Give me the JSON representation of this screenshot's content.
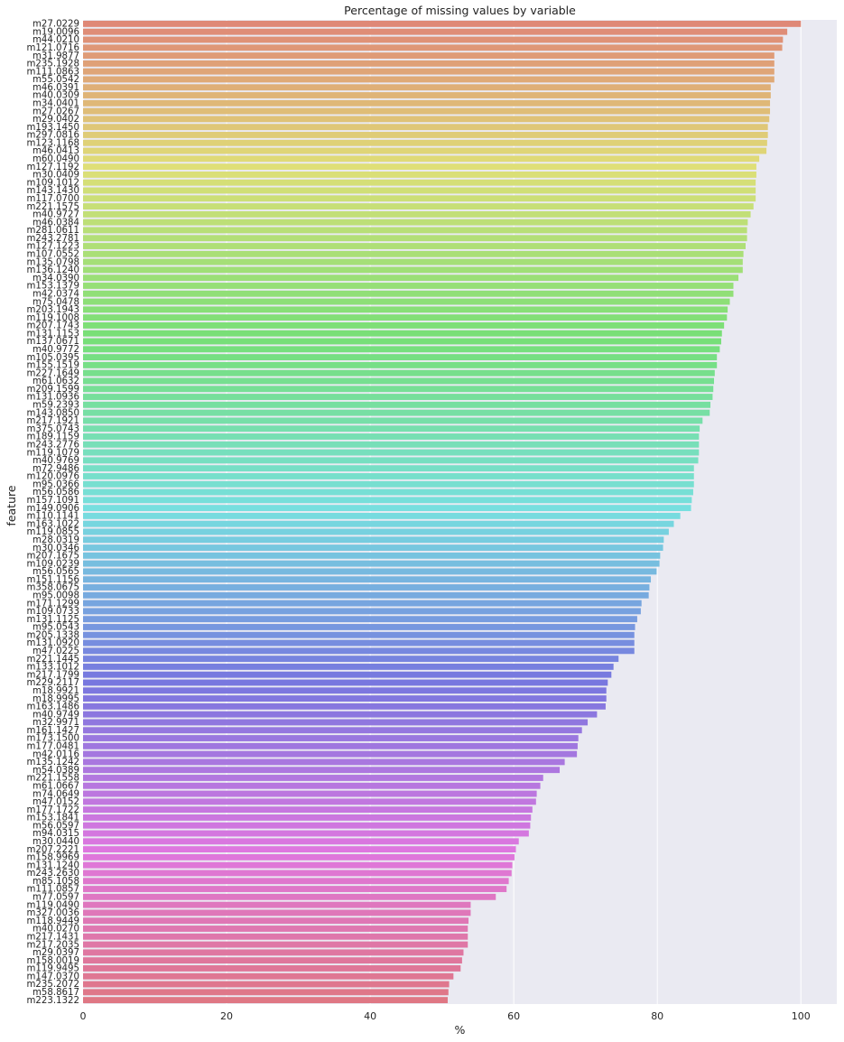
{
  "chart_data": {
    "type": "bar",
    "orientation": "horizontal",
    "title": "Percentage of missing values by variable",
    "xlabel": "%",
    "ylabel": "feature",
    "xlim": [
      0,
      105
    ],
    "xticks": [
      0,
      20,
      40,
      60,
      80,
      100
    ],
    "grid": true,
    "legend": "none",
    "categories": [
      "m27.0229",
      "m19.0096",
      "m44.0210",
      "m121.0716",
      "m31.9877",
      "m235.1928",
      "m111.0863",
      "m55.0542",
      "m46.0391",
      "m40.0309",
      "m34.0401",
      "m27.0267",
      "m29.0402",
      "m193.1450",
      "m297.0816",
      "m123.1168",
      "m46.0413",
      "m60.0490",
      "m127.1192",
      "m30.0409",
      "m109.1012",
      "m143.1430",
      "m117.0700",
      "m221.1575",
      "m40.9727",
      "m46.0384",
      "m281.0611",
      "m243.2781",
      "m127.1223",
      "m107.0552",
      "m135.0798",
      "m136.1240",
      "m34.0390",
      "m153.1379",
      "m42.0374",
      "m75.0478",
      "m203.1943",
      "m119.1008",
      "m207.1743",
      "m131.1153",
      "m137.0671",
      "m40.9772",
      "m105.0395",
      "m155.1519",
      "m227.1649",
      "m61.0632",
      "m209.1599",
      "m131.0936",
      "m59.2393",
      "m143.0850",
      "m217.1921",
      "m375.0743",
      "m189.1159",
      "m243.2776",
      "m119.1079",
      "m40.9769",
      "m72.9486",
      "m120.0976",
      "m95.0366",
      "m56.0586",
      "m157.1091",
      "m149.0906",
      "m110.1141",
      "m163.1022",
      "m119.0855",
      "m28.0319",
      "m30.0346",
      "m207.1675",
      "m109.0239",
      "m56.0565",
      "m151.1156",
      "m358.0675",
      "m95.0098",
      "m171.1299",
      "m109.0733",
      "m131.1125",
      "m95.0543",
      "m205.1338",
      "m131.0920",
      "m47.0225",
      "m221.1445",
      "m133.1012",
      "m217.1799",
      "m229.2117",
      "m18.9921",
      "m18.9995",
      "m163.1486",
      "m40.9749",
      "m32.9971",
      "m161.1427",
      "m173.1500",
      "m177.0481",
      "m42.0116",
      "m135.1242",
      "m54.0389",
      "m221.1558",
      "m61.0667",
      "m74.0649",
      "m47.0152",
      "m177.1722",
      "m153.1841",
      "m56.0597",
      "m94.0315",
      "m30.0440",
      "m207.2221",
      "m158.9969",
      "m131.1240",
      "m243.2630",
      "m85.1058",
      "m111.0857",
      "m77.0597",
      "m119.0490",
      "m327.0036",
      "m118.9449",
      "m40.0270",
      "m217.1431",
      "m217.2035",
      "m29.0397",
      "m158.0019",
      "m119.9495",
      "m147.0370",
      "m235.2072",
      "m58.8617",
      "m223.1322"
    ],
    "values": [
      100,
      98.1,
      97.5,
      97.4,
      96.3,
      96.3,
      96.3,
      96.3,
      95.8,
      95.8,
      95.7,
      95.7,
      95.6,
      95.4,
      95.4,
      95.3,
      95.2,
      94.2,
      93.8,
      93.8,
      93.7,
      93.7,
      93.7,
      93.4,
      93.0,
      92.6,
      92.5,
      92.5,
      92.3,
      92.0,
      91.9,
      91.9,
      91.3,
      90.6,
      90.6,
      90.1,
      89.8,
      89.7,
      89.3,
      89.0,
      88.9,
      88.7,
      88.3,
      88.3,
      88.0,
      87.9,
      87.8,
      87.7,
      87.4,
      87.3,
      86.3,
      85.9,
      85.8,
      85.8,
      85.8,
      85.7,
      85.1,
      85.1,
      85.1,
      85.0,
      84.8,
      84.7,
      83.2,
      82.3,
      81.6,
      80.9,
      80.8,
      80.4,
      80.3,
      79.9,
      79.1,
      78.9,
      78.8,
      77.8,
      77.7,
      77.2,
      76.9,
      76.8,
      76.8,
      76.8,
      74.6,
      73.9,
      73.6,
      73.1,
      72.9,
      72.9,
      72.8,
      71.6,
      70.3,
      69.5,
      69.0,
      68.9,
      68.8,
      67.1,
      66.4,
      64.1,
      63.7,
      63.2,
      63.1,
      62.6,
      62.4,
      62.3,
      62.1,
      60.7,
      60.3,
      60.1,
      59.8,
      59.7,
      59.3,
      59.0,
      57.5,
      54.0,
      54.0,
      53.7,
      53.6,
      53.6,
      53.6,
      53.0,
      52.8,
      52.6,
      51.6,
      51.0,
      50.9,
      50.8
    ],
    "palette": "husl"
  }
}
